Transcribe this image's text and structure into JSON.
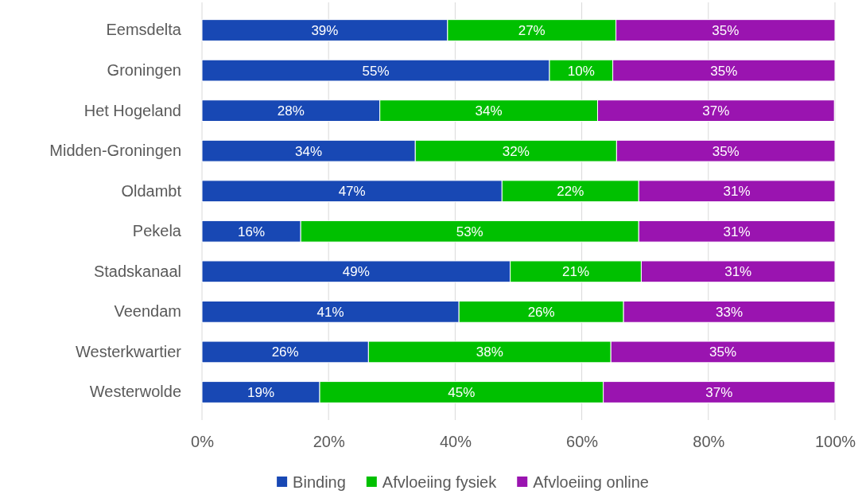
{
  "chart_data": {
    "type": "bar",
    "orientation": "horizontal",
    "stacked": true,
    "categories": [
      "Eemsdelta",
      "Groningen",
      "Het Hogeland",
      "Midden-Groningen",
      "Oldambt",
      "Pekela",
      "Stadskanaal",
      "Veendam",
      "Westerkwartier",
      "Westerwolde"
    ],
    "series": [
      {
        "name": "Binding",
        "color": "#1848b4",
        "values": [
          38.8,
          54.9,
          28.1,
          33.7,
          47.4,
          15.6,
          48.7,
          40.6,
          26.3,
          18.6
        ],
        "value_labels": [
          "39%",
          "55%",
          "28%",
          "34%",
          "47%",
          "16%",
          "49%",
          "41%",
          "26%",
          "19%"
        ]
      },
      {
        "name": "Afvloeiing fysiek",
        "color": "#00c000",
        "values": [
          26.6,
          10.0,
          34.4,
          31.8,
          21.6,
          53.4,
          20.7,
          26.0,
          38.3,
          44.8
        ],
        "value_labels": [
          "27%",
          "10%",
          "34%",
          "32%",
          "22%",
          "53%",
          "21%",
          "26%",
          "38%",
          "45%"
        ]
      },
      {
        "name": "Afvloeiing online",
        "color": "#9a14b0",
        "values": [
          34.6,
          35.1,
          37.4,
          34.5,
          31.0,
          31.0,
          30.6,
          33.4,
          35.4,
          36.6
        ],
        "value_labels": [
          "35%",
          "35%",
          "37%",
          "35%",
          "31%",
          "31%",
          "31%",
          "33%",
          "35%",
          "37%"
        ]
      }
    ],
    "xlim": [
      0,
      100
    ],
    "xticks": [
      {
        "value": 0,
        "label": "0%"
      },
      {
        "value": 20,
        "label": "20%"
      },
      {
        "value": 40,
        "label": "40%"
      },
      {
        "value": 60,
        "label": "60%"
      },
      {
        "value": 80,
        "label": "80%"
      },
      {
        "value": 100,
        "label": "100%"
      }
    ],
    "grid": "x",
    "legend": "bottom"
  }
}
